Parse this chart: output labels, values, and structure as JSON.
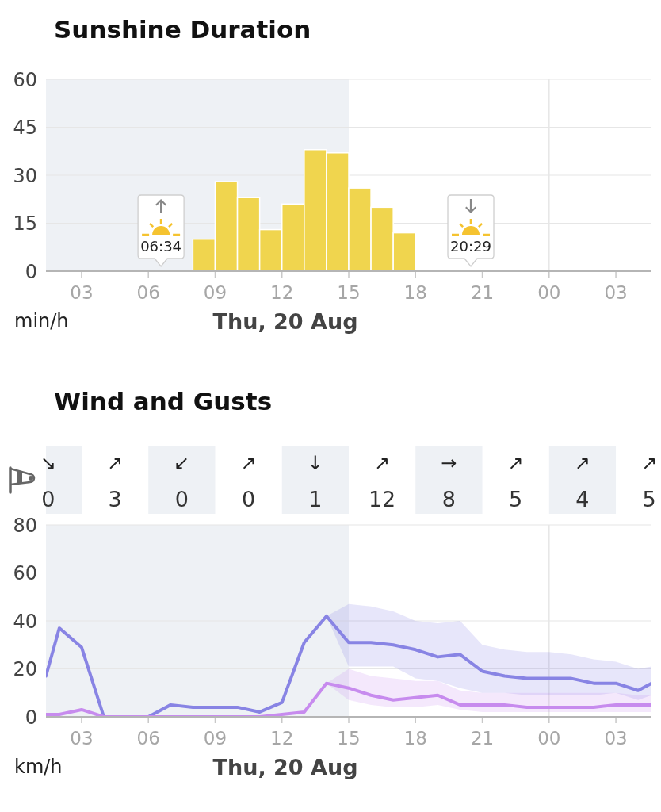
{
  "chart_data": [
    {
      "type": "histogram",
      "title": "Sunshine Duration",
      "xlabel": "Thu, 20 Aug",
      "ylabel": "min/h",
      "bins": [
        8,
        9,
        10,
        11,
        12,
        13,
        14,
        15,
        16,
        17,
        18
      ],
      "values": [
        10,
        28,
        23,
        13,
        21,
        38,
        37,
        26,
        20,
        12
      ],
      "color": "#f0d54e",
      "xlim": [
        1.4,
        28.6
      ],
      "xticks": [
        {
          "value": 3,
          "label": "03"
        },
        {
          "value": 6,
          "label": "06"
        },
        {
          "value": 9,
          "label": "09"
        },
        12,
        15,
        18,
        21,
        {
          "value": 24,
          "label": "00"
        },
        {
          "value": 27,
          "label": "03"
        }
      ],
      "ylim": [
        0,
        60
      ],
      "yticks": [
        0,
        15,
        30,
        45,
        60
      ],
      "grid": "y",
      "bands": [
        {
          "axis": "x",
          "from": 1.4,
          "to": 15,
          "color": "#eef1f5"
        }
      ],
      "ref_lines": [
        {
          "axis": "x",
          "value": 24,
          "color": "#e6e6e6"
        }
      ],
      "annotations": [
        "06:34",
        "20:29"
      ]
    },
    {
      "type": "other",
      "categories": [
        "↘",
        "↗",
        "↙",
        "↗",
        "↓",
        "↗",
        "→",
        "↗",
        "↗",
        "↗"
      ],
      "values": [
        0,
        3,
        0,
        0,
        1,
        12,
        8,
        5,
        4,
        5
      ],
      "data_labels": true
    },
    {
      "type": "line",
      "title": "Wind and Gusts",
      "xlabel": "Thu, 20 Aug",
      "ylabel": "km/h",
      "x": [
        1.4,
        2,
        3,
        4,
        5,
        6,
        7,
        8,
        9,
        10,
        11,
        12,
        13,
        14,
        15,
        16,
        17,
        18,
        19,
        20,
        21,
        22,
        23,
        24,
        25,
        26,
        27,
        28,
        28.6
      ],
      "series": [
        {
          "color": "#8884e4",
          "values": [
            17,
            37,
            29,
            0,
            0,
            0,
            5,
            4,
            4,
            4,
            2,
            6,
            31,
            42,
            31,
            31,
            30,
            28,
            25,
            26,
            19,
            17,
            16,
            16,
            16,
            14,
            14,
            11,
            14
          ],
          "lower": [
            null,
            null,
            null,
            null,
            null,
            null,
            null,
            null,
            null,
            null,
            null,
            null,
            null,
            42,
            21,
            21,
            21,
            16,
            15,
            12,
            10,
            10,
            9,
            9,
            9,
            9,
            10,
            7,
            9
          ],
          "upper": [
            null,
            null,
            null,
            null,
            null,
            null,
            null,
            null,
            null,
            null,
            null,
            null,
            null,
            42,
            47,
            46,
            44,
            40,
            39,
            40,
            30,
            28,
            27,
            27,
            26,
            24,
            23,
            20,
            21
          ]
        },
        {
          "color": "#c78bee",
          "values": [
            1,
            1,
            3,
            0,
            0,
            0,
            0,
            0,
            0,
            0,
            0,
            1,
            2,
            14,
            12,
            9,
            7,
            8,
            9,
            5,
            5,
            5,
            4,
            4,
            4,
            4,
            5,
            5,
            5
          ],
          "lower": [
            null,
            null,
            null,
            null,
            null,
            null,
            null,
            null,
            null,
            null,
            null,
            null,
            null,
            14,
            7,
            5,
            4,
            4,
            5,
            3,
            2,
            2,
            2,
            2,
            2,
            2,
            2,
            2,
            2
          ],
          "upper": [
            null,
            null,
            null,
            null,
            null,
            null,
            null,
            null,
            null,
            null,
            null,
            null,
            null,
            14,
            20,
            17,
            16,
            15,
            15,
            11,
            10,
            10,
            10,
            10,
            10,
            10,
            10,
            9,
            9
          ]
        }
      ],
      "xlim": [
        1.4,
        28.6
      ],
      "xticks": [
        {
          "value": 3,
          "label": "03"
        },
        {
          "value": 6,
          "label": "06"
        },
        {
          "value": 9,
          "label": "09"
        },
        12,
        15,
        18,
        21,
        {
          "value": 24,
          "label": "00"
        },
        {
          "value": 27,
          "label": "03"
        }
      ],
      "ylim": [
        0,
        80
      ],
      "yticks": [
        0,
        20,
        40,
        60,
        80
      ],
      "grid": "y",
      "bands": [
        {
          "axis": "x",
          "from": 1.4,
          "to": 15,
          "color": "#eef1f5"
        }
      ],
      "ref_lines": [
        {
          "axis": "x",
          "value": 24,
          "color": "#e6e6e6"
        }
      ]
    }
  ]
}
